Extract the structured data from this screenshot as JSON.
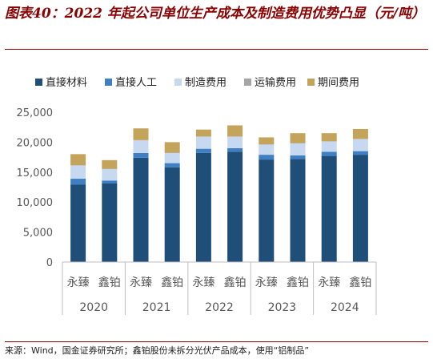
{
  "figure": {
    "title": "图表40：2022 年起公司单位生产成本及制造费用优势凸显（元/吨）",
    "source": "来源：Wind，国金证券研究所；鑫铂股份未拆分光伏产品成本，使用“铝制品”"
  },
  "colors": {
    "title": "#8b0000",
    "series": [
      "#1f4e79",
      "#3f7fc3",
      "#c6d9f1",
      "#a5a5a5",
      "#c4a35a"
    ],
    "axis": "#bfbfbf",
    "text": "#595959"
  },
  "chart_data": {
    "type": "bar",
    "stacked": true,
    "categories": [
      "永臻",
      "鑫铂",
      "永臻",
      "鑫铂",
      "永臻",
      "鑫铂",
      "永臻",
      "鑫铂",
      "永臻",
      "鑫铂"
    ],
    "groups": [
      {
        "label": "2020",
        "span": 2
      },
      {
        "label": "2021",
        "span": 2
      },
      {
        "label": "2022",
        "span": 2
      },
      {
        "label": "2023",
        "span": 2
      },
      {
        "label": "2024",
        "span": 2
      }
    ],
    "series": [
      {
        "name": "直接材料",
        "values": [
          12900,
          13100,
          17400,
          15800,
          18200,
          18400,
          17100,
          17200,
          17700,
          17900
        ]
      },
      {
        "name": "直接人工",
        "values": [
          1000,
          500,
          800,
          700,
          700,
          600,
          800,
          600,
          700,
          600
        ]
      },
      {
        "name": "制造费用",
        "values": [
          2200,
          1900,
          2100,
          1700,
          2000,
          1900,
          1700,
          2000,
          1700,
          2000
        ]
      },
      {
        "name": "运输费用",
        "values": [
          50,
          50,
          50,
          50,
          50,
          50,
          50,
          50,
          50,
          50
        ]
      },
      {
        "name": "期间费用",
        "values": [
          1850,
          1450,
          1950,
          1750,
          1150,
          1850,
          1150,
          1650,
          1350,
          1650
        ]
      }
    ],
    "ylim": [
      0,
      25000
    ],
    "yticks": [
      "0",
      "5,000",
      "10,000",
      "15,000",
      "20,000",
      "25,000"
    ],
    "ytick_values": [
      0,
      5000,
      10000,
      15000,
      20000,
      25000
    ],
    "legend": "top",
    "grid": false
  }
}
